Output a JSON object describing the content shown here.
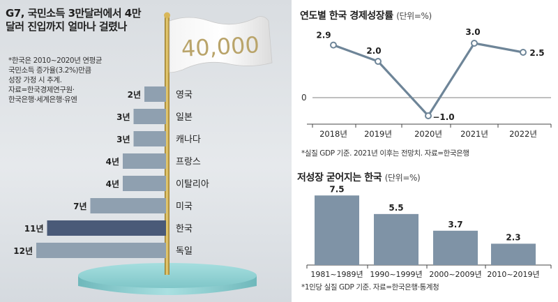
{
  "left": {
    "title": "G7, 국민소득 3만달러에서 4만달러 진입까지 얼마나 걸렸나",
    "note": "*한국은 2010~2020년 연평균\n국민소득 증가율(3.2%)만큼\n성장 가정 시 추계.\n자료=한국경제연구원·\n한국은행·세계은행·유엔",
    "flag_text": "40,000"
  },
  "right_top": {
    "title": "연도별 한국 경제성장률",
    "unit": "(단위=%)",
    "source": "*실질 GDP 기준. 2021년 이후는 전망치. 자료=한국은행"
  },
  "right_bottom": {
    "title": "저성장 굳어지는 한국",
    "unit": "(단위=%)",
    "source": "*1인당 실질 GDP 기준. 자료=한국은행·통계청"
  },
  "colors": {
    "bar": "#8fa0b0",
    "bar_highlight": "#4a5a78",
    "line": "#6e8598",
    "col_bar": "#7f93a6",
    "pole": "#c8a64a",
    "pedestal": "#8fd0d2"
  },
  "chart_data": [
    {
      "type": "bar",
      "orientation": "horizontal",
      "categories": [
        "영국",
        "일본",
        "캐나다",
        "프랑스",
        "이탈리아",
        "미국",
        "한국",
        "독일"
      ],
      "values": [
        2,
        3,
        3,
        4,
        4,
        7,
        11,
        12
      ],
      "value_labels": [
        "2년",
        "3년",
        "3년",
        "4년",
        "4년",
        "7년",
        "11년",
        "12년"
      ],
      "highlight": "한국"
    },
    {
      "type": "line",
      "title": "연도별 한국 경제성장률",
      "categories": [
        "2018년",
        "2019년",
        "2020년",
        "2021년",
        "2022년"
      ],
      "values": [
        2.9,
        2.0,
        -1.0,
        3.0,
        2.5
      ],
      "value_labels": [
        "2.9",
        "2.0",
        "−1.0",
        "3.0",
        "2.5"
      ],
      "zero_label": "0",
      "ylim": [
        -1.5,
        3.5
      ]
    },
    {
      "type": "bar",
      "title": "저성장 굳어지는 한국",
      "categories": [
        "1981~1989년",
        "1990~1999년",
        "2000~2009년",
        "2010~2019년"
      ],
      "values": [
        7.5,
        5.5,
        3.7,
        2.3
      ],
      "value_labels": [
        "7.5",
        "5.5",
        "3.7",
        "2.3"
      ],
      "ylim": [
        0,
        7.5
      ]
    }
  ]
}
